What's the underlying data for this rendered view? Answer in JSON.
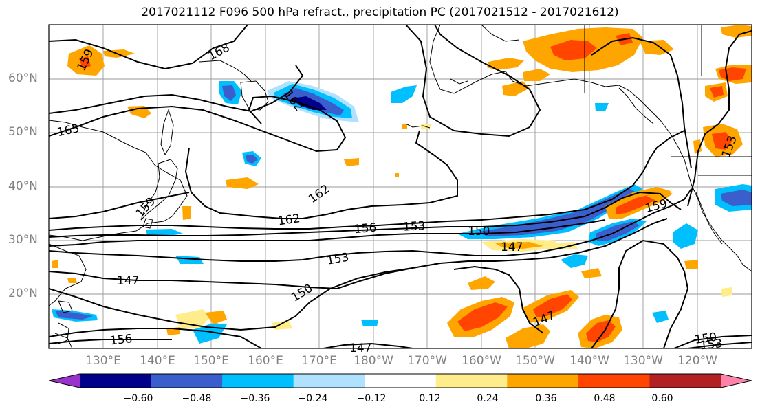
{
  "title": "2017021112 F096 500 hPa refract., precipitation PC (2017021512 - 2017021612)",
  "lat_labels": [
    "60°N",
    "50°N",
    "40°N",
    "30°N",
    "20°N"
  ],
  "lon_labels": [
    "130°E",
    "140°E",
    "150°E",
    "160°E",
    "170°E",
    "180°W",
    "170°W",
    "160°W",
    "150°W",
    "140°W",
    "130°W",
    "120°W"
  ],
  "contour_labels": [
    "168",
    "165",
    "162",
    "162",
    "162",
    "159",
    "156",
    "153",
    "153",
    "150",
    "150",
    "150",
    "147",
    "147",
    "147",
    "147",
    "156",
    "159",
    "159",
    "153",
    "153"
  ],
  "colorbar": {
    "tick_labels": [
      "−0.60",
      "−0.48",
      "−0.36",
      "−0.24",
      "−0.12",
      "0.12",
      "0.24",
      "0.36",
      "0.48",
      "0.60"
    ],
    "colors": [
      "#9932cc",
      "#00008b",
      "#3a5fcd",
      "#00bfff",
      "#b0e2ff",
      "#ffffff",
      "#ffec8b",
      "#ffa500",
      "#ff4500",
      "#b22222",
      "#ff82ab"
    ]
  },
  "colors": {
    "contour": "#000000",
    "coast": "#000000",
    "grid": "#9a9a9a",
    "axis_label": "#808080"
  }
}
